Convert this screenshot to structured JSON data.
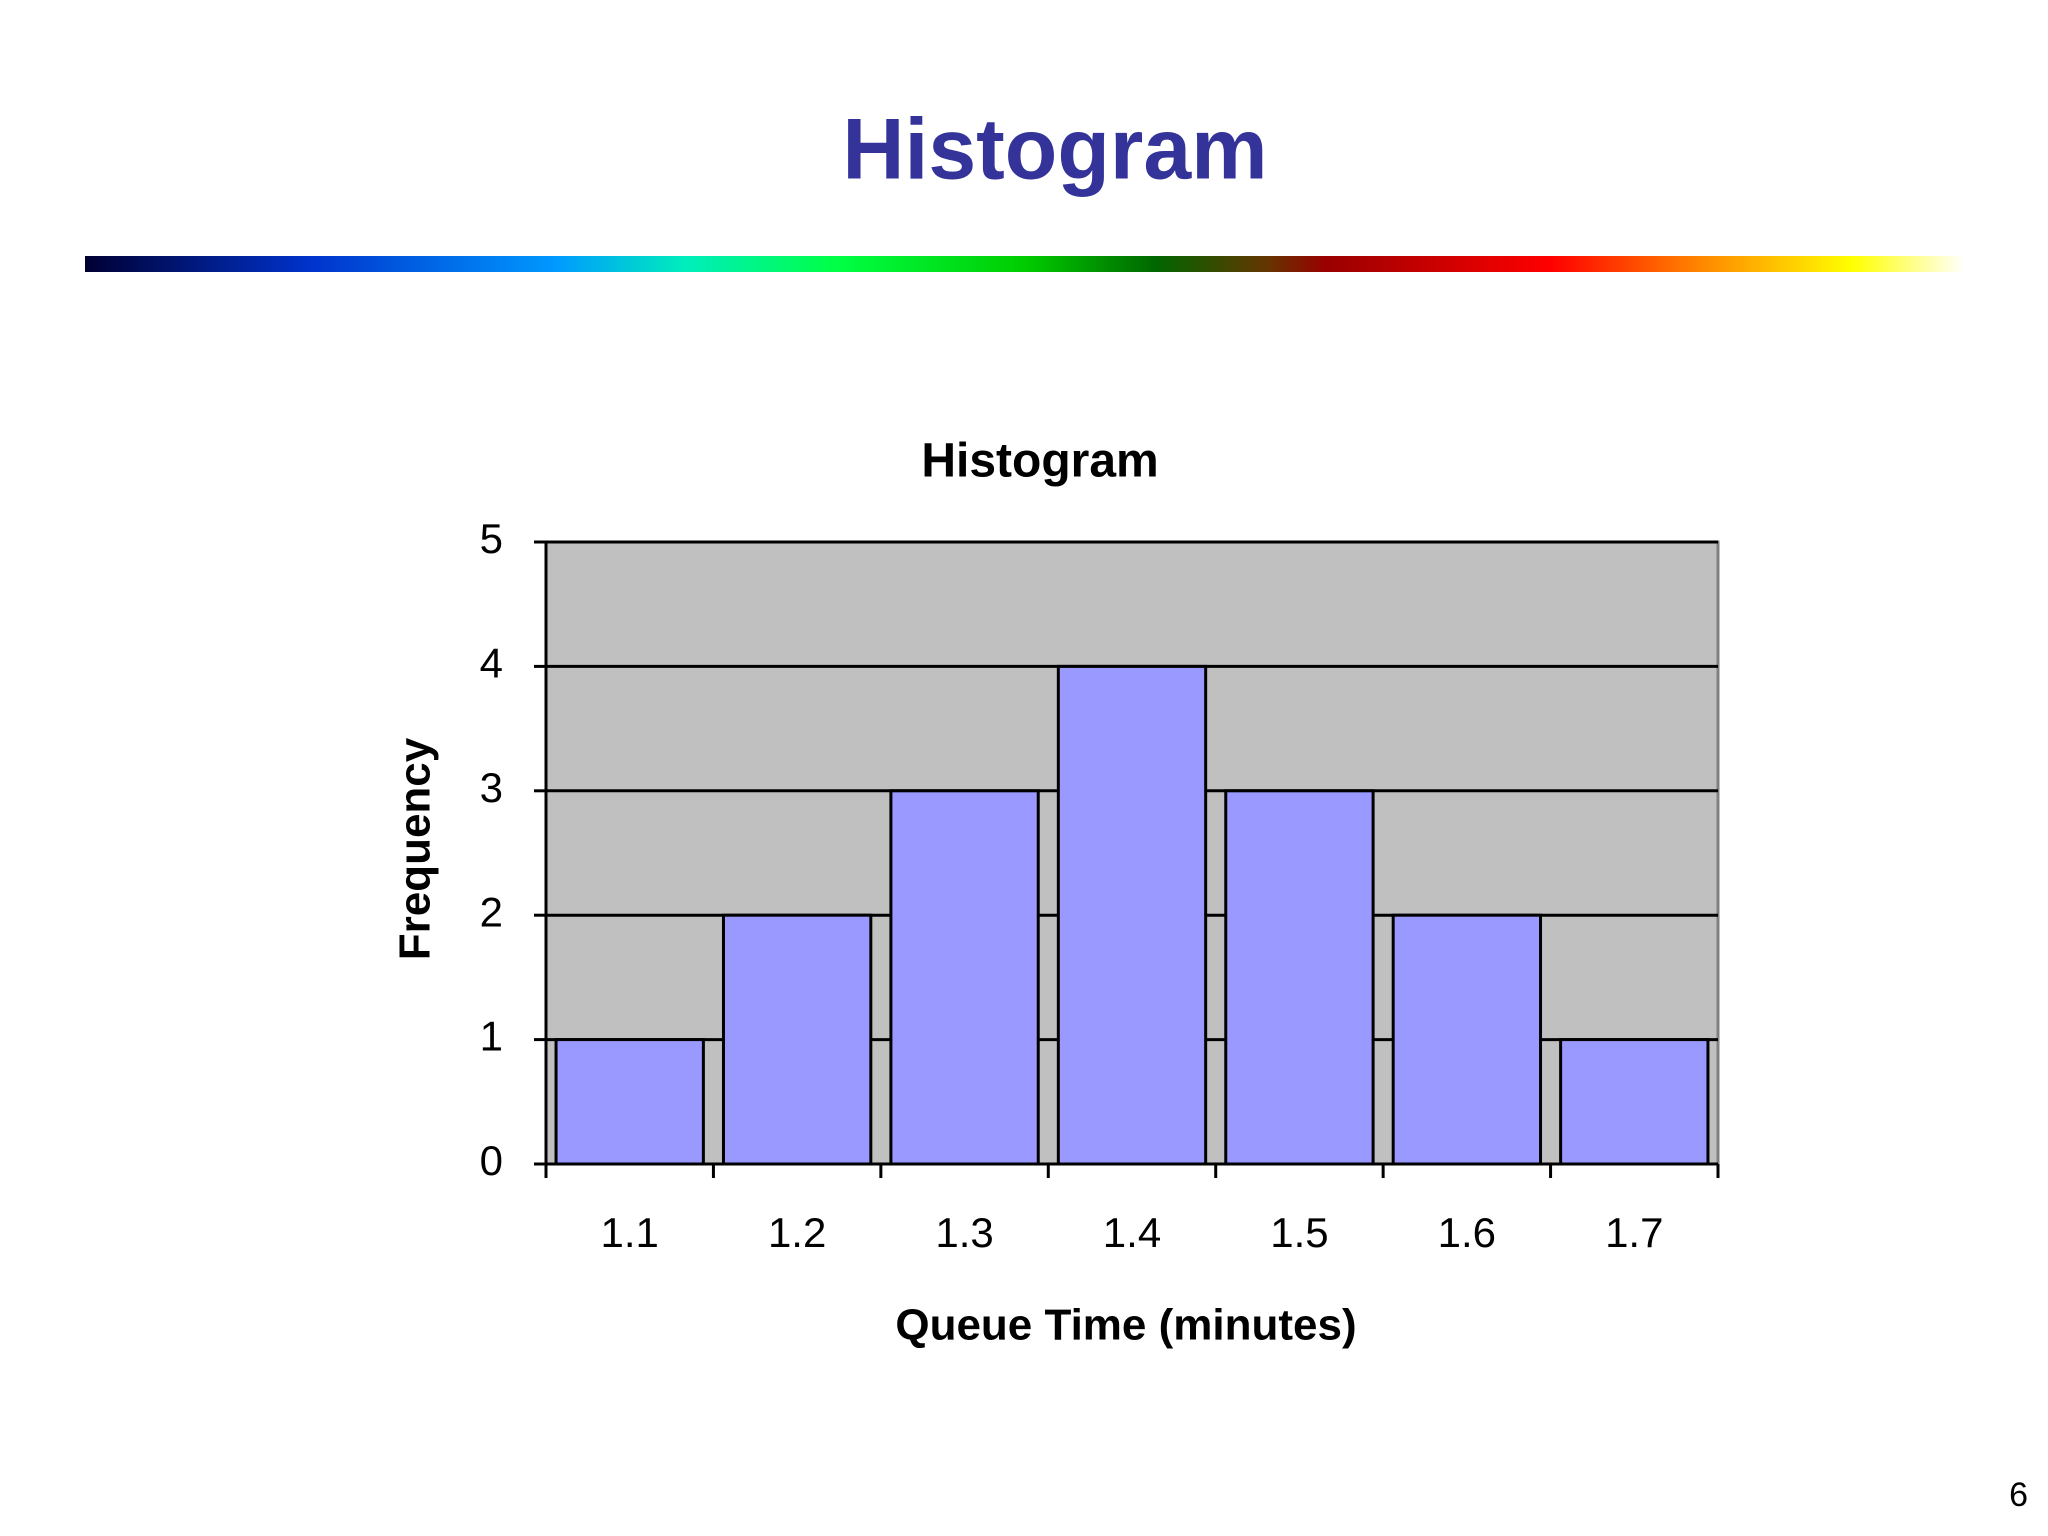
{
  "slide": {
    "title": "Histogram",
    "page_number": 6
  },
  "chart_data": {
    "type": "bar",
    "title": "Histogram",
    "x_label": "Queue Time (minutes)",
    "y_label": "Frequency",
    "categories": [
      "1.1",
      "1.2",
      "1.3",
      "1.4",
      "1.5",
      "1.6",
      "1.7"
    ],
    "values": [
      1,
      2,
      3,
      4,
      3,
      2,
      1
    ],
    "color": "#9999ff",
    "ylim": [
      0,
      5
    ],
    "yticks": [
      0,
      1,
      2,
      3,
      4,
      5
    ],
    "grid": true
  }
}
